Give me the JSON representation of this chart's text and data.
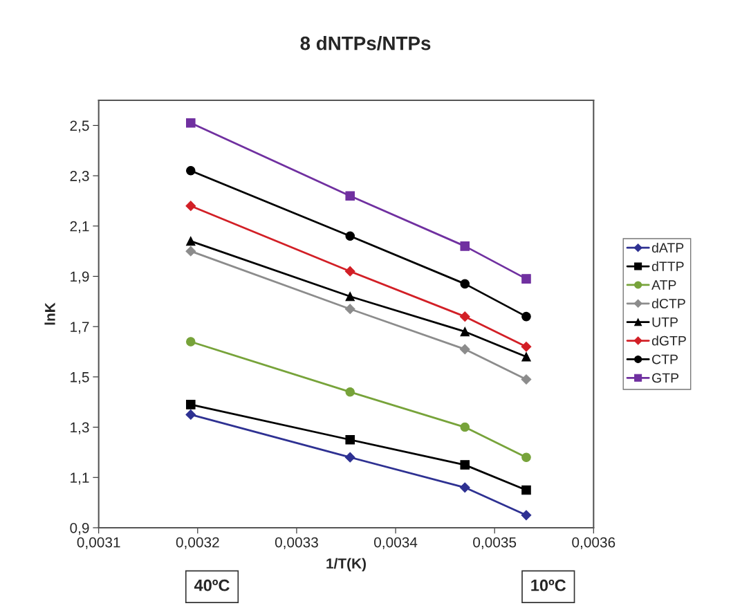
{
  "chart_data": {
    "type": "line",
    "title": "8 dNTPs/NTPs",
    "xlabel": "1/T(K)",
    "ylabel": "lnK",
    "x": [
      0.003193,
      0.003354,
      0.00347,
      0.003532
    ],
    "series": [
      {
        "name": "dATP",
        "color": "#2e3192",
        "marker": "diamond",
        "values": [
          1.35,
          1.18,
          1.06,
          0.95
        ]
      },
      {
        "name": "dTTP",
        "color": "#000000",
        "marker": "square",
        "values": [
          1.39,
          1.25,
          1.15,
          1.05
        ]
      },
      {
        "name": "ATP",
        "color": "#77a33a",
        "marker": "circle",
        "values": [
          1.64,
          1.44,
          1.3,
          1.18
        ]
      },
      {
        "name": "dCTP",
        "color": "#8c8c8c",
        "marker": "diamond",
        "values": [
          2.0,
          1.77,
          1.61,
          1.49
        ]
      },
      {
        "name": "UTP",
        "color": "#000000",
        "marker": "triangle",
        "values": [
          2.04,
          1.82,
          1.68,
          1.58
        ]
      },
      {
        "name": "dGTP",
        "color": "#d21f26",
        "marker": "diamond",
        "values": [
          2.18,
          1.92,
          1.74,
          1.62
        ]
      },
      {
        "name": "CTP",
        "color": "#000000",
        "marker": "circle",
        "values": [
          2.32,
          2.06,
          1.87,
          1.74
        ]
      },
      {
        "name": "GTP",
        "color": "#7030a0",
        "marker": "square",
        "values": [
          2.51,
          2.22,
          2.02,
          1.89
        ]
      }
    ],
    "xlim": [
      0.0031,
      0.0036
    ],
    "xticks": [
      {
        "value": 0.0031,
        "label": "0,0031"
      },
      {
        "value": 0.0032,
        "label": "0,0032"
      },
      {
        "value": 0.0033,
        "label": "0,0033"
      },
      {
        "value": 0.0034,
        "label": "0,0034"
      },
      {
        "value": 0.0035,
        "label": "0,0035"
      },
      {
        "value": 0.0036,
        "label": "0,0036"
      }
    ],
    "ylim": [
      0.9,
      2.6
    ],
    "yticks": [
      {
        "value": 0.9,
        "label": "0,9"
      },
      {
        "value": 1.1,
        "label": "1,1"
      },
      {
        "value": 1.3,
        "label": "1,3"
      },
      {
        "value": 1.5,
        "label": "1,5"
      },
      {
        "value": 1.7,
        "label": "1,7"
      },
      {
        "value": 1.9,
        "label": "1,9"
      },
      {
        "value": 2.1,
        "label": "2,1"
      },
      {
        "value": 2.3,
        "label": "2,3"
      },
      {
        "value": 2.5,
        "label": "2,5"
      }
    ],
    "annotations": [
      "40ºC",
      "10ºC"
    ],
    "grid": false,
    "legend": "right",
    "line_style": "solid"
  }
}
